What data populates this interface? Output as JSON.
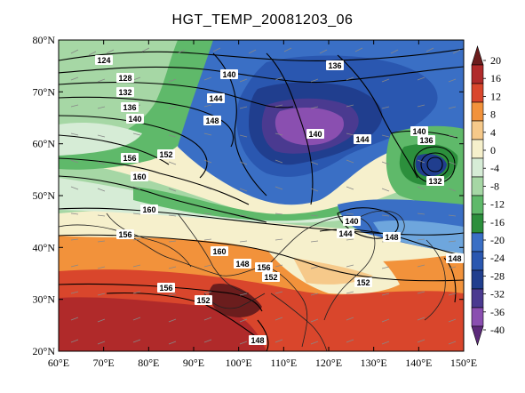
{
  "title": "HGT_TEMP_20081203_06",
  "lat_labels": [
    "80°N",
    "70°N",
    "60°N",
    "50°N",
    "40°N",
    "30°N",
    "20°N"
  ],
  "lon_labels": [
    "60°E",
    "70°E",
    "80°E",
    "90°E",
    "100°E",
    "110°E",
    "120°E",
    "130°E",
    "140°E",
    "150°E"
  ],
  "colorbar": {
    "labels": [
      "20",
      "16",
      "12",
      "8",
      "4",
      "0",
      "-4",
      "-8",
      "-12",
      "-16",
      "-20",
      "-24",
      "-28",
      "-32",
      "-36",
      "-40"
    ],
    "colors": [
      "#6b1d1d",
      "#b02a2a",
      "#d9462c",
      "#f2923b",
      "#f6c98a",
      "#f6f0cc",
      "#d6ecd6",
      "#a6d7a5",
      "#5fb96a",
      "#2c8f3c",
      "#3a6fc5",
      "#2a57b0",
      "#203e8e",
      "#4a3a90",
      "#8a4fb0",
      "#5c2a7a"
    ]
  },
  "contour_labels": [
    "124",
    "128",
    "132",
    "136",
    "140",
    "140",
    "144",
    "148",
    "152",
    "156",
    "160",
    "160",
    "156",
    "136",
    "140",
    "144",
    "140",
    "136",
    "132",
    "140",
    "144",
    "148",
    "160",
    "148",
    "156",
    "152",
    "156",
    "152",
    "152",
    "148",
    "148"
  ]
}
